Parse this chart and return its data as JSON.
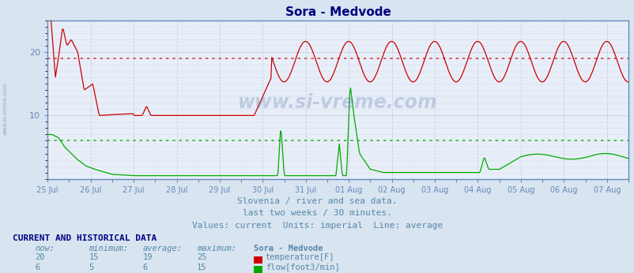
{
  "title": "Sora - Medvode",
  "bg_color": "#d8e4f0",
  "plot_bg_color": "#e8eef8",
  "grid_major_color": "#c8d0e0",
  "grid_minor_color": "#d8e0ec",
  "title_color": "#000080",
  "axis_color": "#6688bb",
  "text_color": "#5588aa",
  "ylim": [
    0,
    25
  ],
  "yticks": [
    10,
    20
  ],
  "temp_avg": 19,
  "flow_avg": 6,
  "temp_color": "#cc0000",
  "flow_color": "#00aa00",
  "avg_temp_color": "#cc4444",
  "avg_flow_color": "#22bb22",
  "watermark": "www.si-vreme.com",
  "subtitle1": "Slovenia / river and sea data.",
  "subtitle2": "last two weeks / 30 minutes.",
  "subtitle3": "Values: current  Units: imperial  Line: average",
  "table_header": "CURRENT AND HISTORICAL DATA",
  "col_headers": [
    "now:",
    "minimum:",
    "average:",
    "maximum:",
    "Sora - Medvode"
  ],
  "temp_row": [
    "20",
    "15",
    "19",
    "25",
    "temperature[F]"
  ],
  "flow_row": [
    "6",
    "5",
    "6",
    "15",
    "flow[foot3/min]"
  ],
  "x_tick_labels": [
    "25 Jul",
    "26 Jul",
    "27 Jul",
    "28 Jul",
    "29 Jul",
    "30 Jul",
    "31 Jul",
    "01 Aug",
    "02 Aug",
    "03 Aug",
    "04 Aug",
    "05 Aug",
    "06 Aug",
    "07 Aug"
  ],
  "x_tick_positions": [
    0,
    1,
    2,
    3,
    4,
    5,
    6,
    7,
    8,
    9,
    10,
    11,
    12,
    13
  ]
}
